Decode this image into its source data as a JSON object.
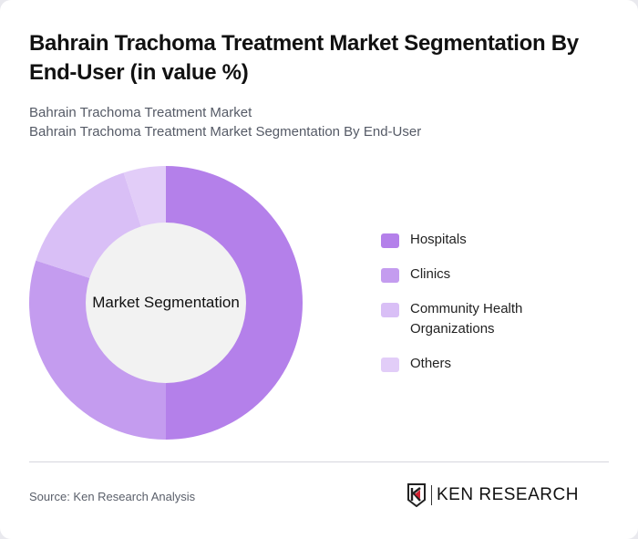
{
  "header": {
    "title": "Bahrain Trachoma Treatment Market Segmentation By End-User (in value %)",
    "subtitle_line1": "Bahrain Trachoma Treatment Market",
    "subtitle_line2": "Bahrain Trachoma Treatment Market Segmentation By End-User"
  },
  "chart": {
    "center_label": "Market Segmentation"
  },
  "legend": {
    "items": [
      {
        "label": "Hospitals",
        "color": "#b480ea"
      },
      {
        "label": "Clinics",
        "color": "#c49cef"
      },
      {
        "label": "Community Health Organizations",
        "color": "#d9bff6"
      },
      {
        "label": "Others",
        "color": "#e2cdf8"
      }
    ]
  },
  "footer": {
    "source": "Source: Ken Research Analysis",
    "logo_text": "KEN RESEARCH"
  },
  "chart_data": {
    "type": "pie",
    "subtype": "donut",
    "title": "Bahrain Trachoma Treatment Market Segmentation By End-User (in value %)",
    "center_label": "Market Segmentation",
    "categories": [
      "Hospitals",
      "Clinics",
      "Community Health Organizations",
      "Others"
    ],
    "values": [
      50,
      30,
      15,
      5
    ],
    "colors": [
      "#b480ea",
      "#c49cef",
      "#d9bff6",
      "#e2cdf8"
    ],
    "legend_position": "right",
    "unit": "%"
  }
}
